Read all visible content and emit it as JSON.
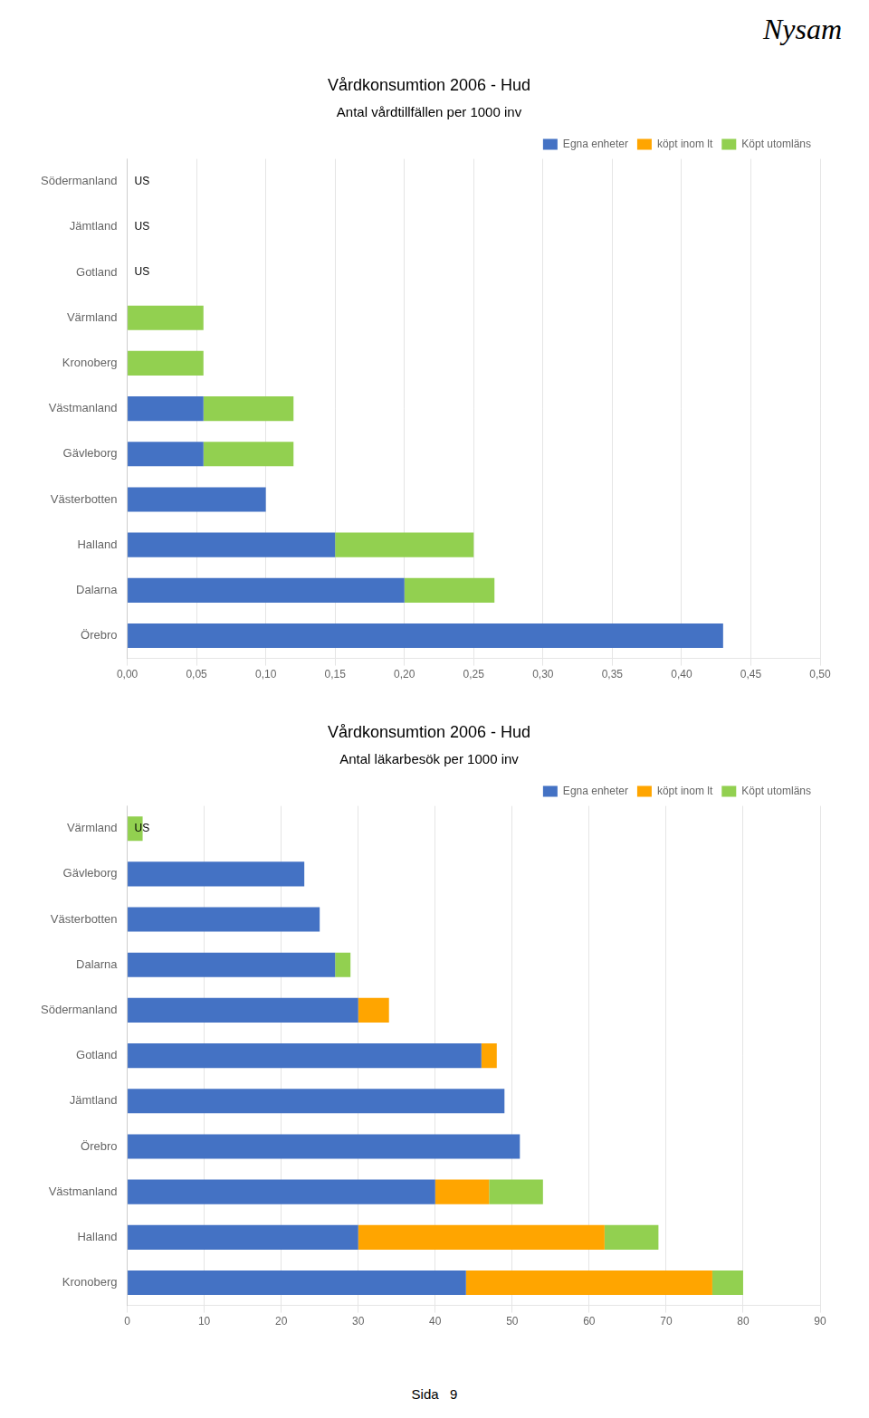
{
  "chart_data": [
    {
      "type": "bar",
      "orientation": "horizontal",
      "stacked": true,
      "title": "Vårdkonsumtion 2006 - Hud",
      "subtitle": "Antal vårdtillfällen per 1000 inv",
      "categories": [
        "Södermanland",
        "Jämtland",
        "Gotland",
        "Värmland",
        "Kronoberg",
        "Västmanland",
        "Gävleborg",
        "Västerbotten",
        "Halland",
        "Dalarna",
        "Örebro"
      ],
      "series": [
        {
          "name": "Egna enheter",
          "color": "#4472C4",
          "values": [
            0,
            0,
            0,
            0,
            0,
            0.055,
            0.055,
            0.1,
            0.15,
            0.2,
            0.43
          ]
        },
        {
          "name": "köpt inom lt",
          "color": "#FFA500",
          "values": [
            0,
            0,
            0,
            0,
            0,
            0,
            0,
            0,
            0,
            0,
            0
          ]
        },
        {
          "name": "Köpt utomläns",
          "color": "#92D050",
          "values": [
            0,
            0,
            0,
            0.055,
            0.055,
            0.065,
            0.065,
            0,
            0.1,
            0.065,
            0
          ]
        }
      ],
      "xlim": [
        0,
        0.5
      ],
      "xticks": [
        {
          "value": 0,
          "label": "0,00"
        },
        {
          "value": 0.05,
          "label": "0,05"
        },
        {
          "value": 0.1,
          "label": "0,10"
        },
        {
          "value": 0.15,
          "label": "0,15"
        },
        {
          "value": 0.2,
          "label": "0,20"
        },
        {
          "value": 0.25,
          "label": "0,25"
        },
        {
          "value": 0.3,
          "label": "0,30"
        },
        {
          "value": 0.35,
          "label": "0,35"
        },
        {
          "value": 0.4,
          "label": "0,40"
        },
        {
          "value": 0.45,
          "label": "0,45"
        },
        {
          "value": 0.5,
          "label": "0,50"
        }
      ],
      "grid": true,
      "legend": "upper right",
      "annotations": [
        {
          "text": "Nysam"
        },
        {
          "text": "US",
          "category": "Södermanland"
        },
        {
          "text": "US",
          "category": "Jämtland"
        },
        {
          "text": "US",
          "category": "Gotland"
        }
      ]
    },
    {
      "type": "bar",
      "orientation": "horizontal",
      "stacked": true,
      "title": "Vårdkonsumtion 2006 - Hud",
      "subtitle": "Antal läkarbesök per 1000 inv",
      "categories": [
        "Värmland",
        "Gävleborg",
        "Västerbotten",
        "Dalarna",
        "Södermanland",
        "Gotland",
        "Jämtland",
        "Örebro",
        "Västmanland",
        "Halland",
        "Kronoberg"
      ],
      "series": [
        {
          "name": "Egna enheter",
          "color": "#4472C4",
          "values": [
            0,
            23,
            25,
            27,
            30,
            46,
            49,
            51,
            40,
            30,
            44
          ]
        },
        {
          "name": "köpt inom lt",
          "color": "#FFA500",
          "values": [
            0,
            0,
            0,
            0,
            4,
            2,
            0,
            0,
            7,
            32,
            32
          ]
        },
        {
          "name": "Köpt utomläns",
          "color": "#92D050",
          "values": [
            2,
            0,
            0,
            2,
            0,
            0,
            0,
            0,
            7,
            7,
            4
          ]
        }
      ],
      "xlim": [
        0,
        90
      ],
      "xticks": [
        0,
        10,
        20,
        30,
        40,
        50,
        60,
        70,
        80,
        90
      ],
      "grid": true,
      "legend": "upper right",
      "annotations": [
        {
          "text": "Sida   9"
        },
        {
          "text": "US",
          "category": "Värmland"
        }
      ]
    }
  ]
}
